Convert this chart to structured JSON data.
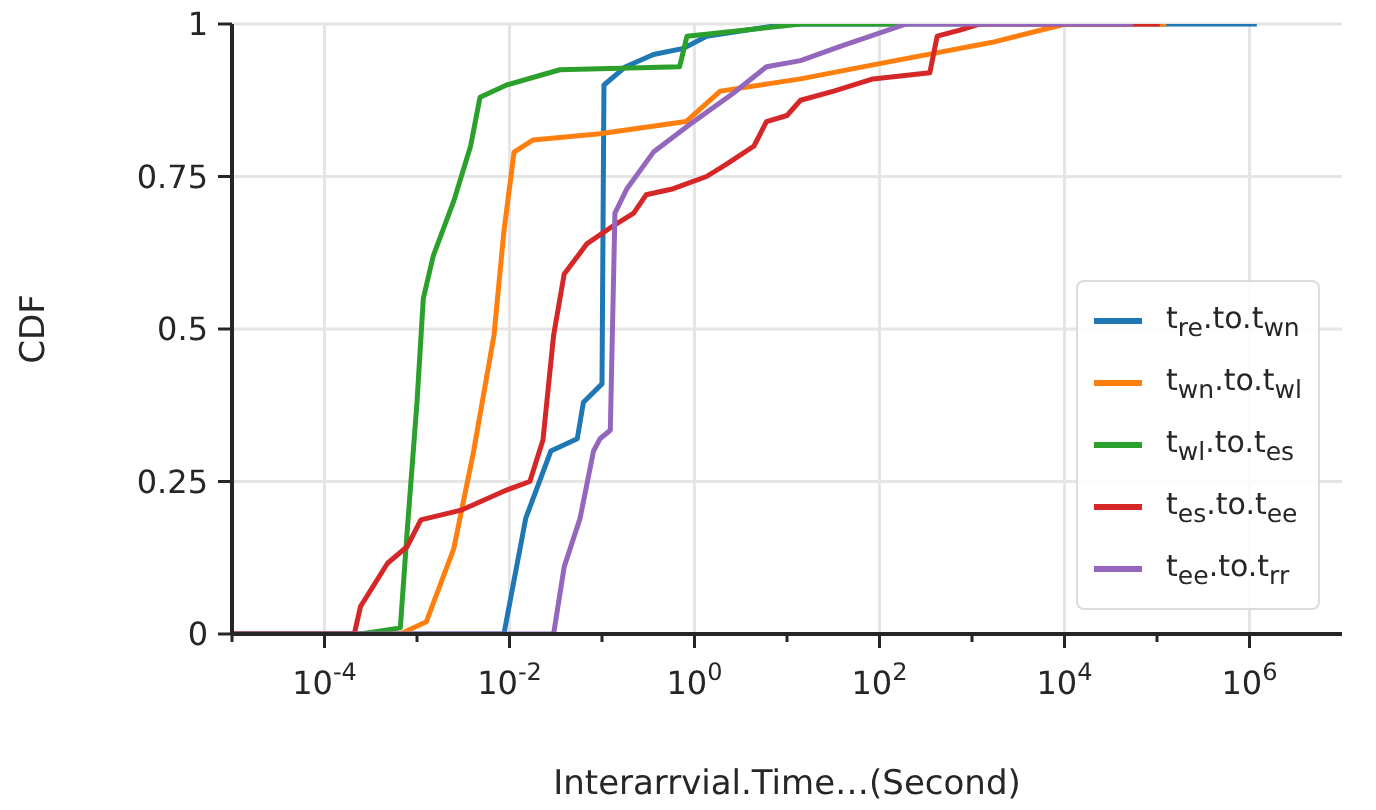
{
  "chart_data": {
    "type": "line",
    "xlabel": "Interarrvial.Time…(Second)",
    "ylabel": "CDF",
    "log": "x",
    "grid": true,
    "legend": "bottom right",
    "marker": "none",
    "line_style": "solid",
    "xlim": [
      1e-05,
      10000000
    ],
    "xticks": [
      {
        "value": 1e-05,
        "label": null
      },
      {
        "value": 0.0001,
        "label": "10$^{-4}$"
      },
      {
        "value": 0.001,
        "label": null
      },
      {
        "value": 0.01,
        "label": "10$^{-2}$"
      },
      {
        "value": 0.1,
        "label": null
      },
      {
        "value": 1,
        "label": "10$^{0}$"
      },
      {
        "value": 10,
        "label": null
      },
      {
        "value": 100,
        "label": "10$^{2}$"
      },
      {
        "value": 1000,
        "label": null
      },
      {
        "value": 10000,
        "label": "10$^{4}$"
      },
      {
        "value": 100000,
        "label": null
      },
      {
        "value": 1000000,
        "label": "10$^{6}$"
      }
    ],
    "ylim": [
      0,
      1
    ],
    "yticks": [
      0,
      0.25,
      0.5,
      0.75,
      1
    ],
    "series": [
      {
        "name": "t$_{re}$.to.t$_{wn}$",
        "color": "#1f77b4",
        "x": [
          1e-05,
          0.0087,
          0.015,
          0.028,
          0.054,
          0.063,
          0.1,
          0.105,
          0.18,
          0.36,
          0.76,
          1.35,
          10,
          1200000
        ],
        "values": [
          0,
          0,
          0.19,
          0.3,
          0.32,
          0.38,
          0.41,
          0.9,
          0.93,
          0.95,
          0.96,
          0.98,
          1,
          1
        ]
      },
      {
        "name": "t$_{wn}$.to.t$_{wl}$",
        "color": "#ff7f0e",
        "x": [
          1e-05,
          0.00066,
          0.00126,
          0.0025,
          0.0041,
          0.0068,
          0.0087,
          0.0112,
          0.018,
          0.095,
          0.81,
          1.9,
          14,
          100,
          1660,
          10200,
          126000
        ],
        "values": [
          0,
          0,
          0.02,
          0.14,
          0.3,
          0.49,
          0.66,
          0.79,
          0.81,
          0.82,
          0.84,
          0.89,
          0.91,
          0.935,
          0.97,
          1,
          1
        ]
      },
      {
        "name": "t$_{wl}$.to.t$_{es}$",
        "color": "#2ca02c",
        "x": [
          1e-05,
          0.000245,
          0.00066,
          0.00078,
          0.001,
          0.00117,
          0.0015,
          0.0025,
          0.0038,
          0.0048,
          0.0093,
          0.035,
          0.69,
          0.83,
          3.6,
          14,
          166
        ],
        "values": [
          0,
          0,
          0.01,
          0.165,
          0.38,
          0.55,
          0.62,
          0.71,
          0.8,
          0.88,
          0.9,
          0.925,
          0.93,
          0.98,
          0.99,
          1,
          1
        ]
      },
      {
        "name": "t$_{es}$.to.t$_{ee}$",
        "color": "#d62728",
        "x": [
          1e-05,
          0.00021,
          0.000245,
          0.00048,
          0.00078,
          0.0011,
          0.003,
          0.0093,
          0.0166,
          0.023,
          0.03,
          0.039,
          0.069,
          0.135,
          0.22,
          0.3,
          0.59,
          1.35,
          2.2,
          4.4,
          6,
          10,
          14,
          32,
          85,
          350,
          420,
          740,
          1200,
          107000
        ],
        "values": [
          0,
          0,
          0.045,
          0.116,
          0.143,
          0.187,
          0.203,
          0.236,
          0.25,
          0.318,
          0.49,
          0.59,
          0.64,
          0.67,
          0.69,
          0.72,
          0.73,
          0.75,
          0.77,
          0.8,
          0.84,
          0.85,
          0.875,
          0.89,
          0.91,
          0.92,
          0.98,
          0.99,
          1,
          1
        ]
      },
      {
        "name": "t$_{ee}$.to.t$_{rr}$",
        "color": "#9467bd",
        "x": [
          1e-05,
          0.03,
          0.039,
          0.058,
          0.081,
          0.095,
          0.123,
          0.138,
          0.186,
          0.36,
          0.98,
          2.6,
          6,
          14,
          37,
          195,
          55000
        ],
        "values": [
          0,
          0,
          0.11,
          0.19,
          0.3,
          0.32,
          0.334,
          0.69,
          0.73,
          0.79,
          0.84,
          0.886,
          0.93,
          0.94,
          0.963,
          1,
          1
        ]
      }
    ]
  }
}
